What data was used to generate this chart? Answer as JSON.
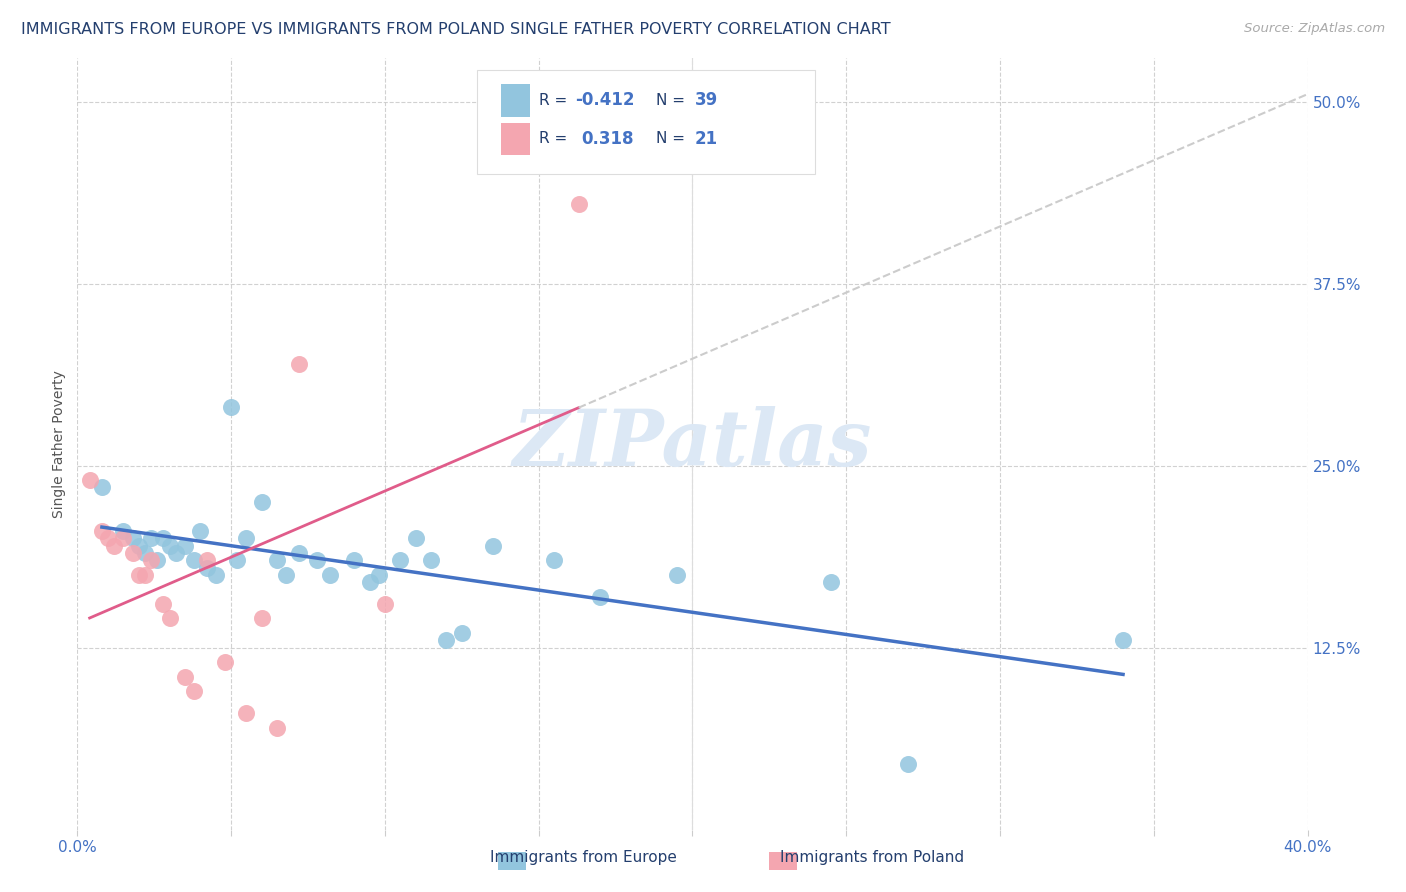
{
  "title": "IMMIGRANTS FROM EUROPE VS IMMIGRANTS FROM POLAND SINGLE FATHER POVERTY CORRELATION CHART",
  "source": "Source: ZipAtlas.com",
  "ylabel": "Single Father Poverty",
  "ytick_labels": [
    "50.0%",
    "37.5%",
    "25.0%",
    "12.5%"
  ],
  "ytick_values": [
    0.5,
    0.375,
    0.25,
    0.125
  ],
  "xlim": [
    0.0,
    0.4
  ],
  "ylim": [
    0.0,
    0.53
  ],
  "r_europe": -0.412,
  "r_poland": 0.318,
  "n_europe": 39,
  "n_poland": 21,
  "blue_color": "#92c5de",
  "pink_color": "#f4a6b0",
  "blue_line_color": "#4472c4",
  "pink_line_color": "#e05c8a",
  "pink_dash_color": "#cccccc",
  "watermark_color": "#dce8f5",
  "title_color": "#243f6e",
  "axis_label_color": "#4472c4",
  "legend_number_color": "#4472c4",
  "blue_scatter": [
    [
      0.008,
      0.235
    ],
    [
      0.015,
      0.205
    ],
    [
      0.018,
      0.2
    ],
    [
      0.02,
      0.195
    ],
    [
      0.022,
      0.19
    ],
    [
      0.024,
      0.2
    ],
    [
      0.026,
      0.185
    ],
    [
      0.028,
      0.2
    ],
    [
      0.03,
      0.195
    ],
    [
      0.032,
      0.19
    ],
    [
      0.035,
      0.195
    ],
    [
      0.038,
      0.185
    ],
    [
      0.04,
      0.205
    ],
    [
      0.042,
      0.18
    ],
    [
      0.045,
      0.175
    ],
    [
      0.05,
      0.29
    ],
    [
      0.052,
      0.185
    ],
    [
      0.055,
      0.2
    ],
    [
      0.06,
      0.225
    ],
    [
      0.065,
      0.185
    ],
    [
      0.068,
      0.175
    ],
    [
      0.072,
      0.19
    ],
    [
      0.078,
      0.185
    ],
    [
      0.082,
      0.175
    ],
    [
      0.09,
      0.185
    ],
    [
      0.095,
      0.17
    ],
    [
      0.098,
      0.175
    ],
    [
      0.105,
      0.185
    ],
    [
      0.11,
      0.2
    ],
    [
      0.115,
      0.185
    ],
    [
      0.12,
      0.13
    ],
    [
      0.125,
      0.135
    ],
    [
      0.135,
      0.195
    ],
    [
      0.155,
      0.185
    ],
    [
      0.17,
      0.16
    ],
    [
      0.195,
      0.175
    ],
    [
      0.245,
      0.17
    ],
    [
      0.27,
      0.045
    ],
    [
      0.34,
      0.13
    ]
  ],
  "pink_scatter": [
    [
      0.004,
      0.24
    ],
    [
      0.008,
      0.205
    ],
    [
      0.01,
      0.2
    ],
    [
      0.012,
      0.195
    ],
    [
      0.015,
      0.2
    ],
    [
      0.018,
      0.19
    ],
    [
      0.02,
      0.175
    ],
    [
      0.022,
      0.175
    ],
    [
      0.024,
      0.185
    ],
    [
      0.028,
      0.155
    ],
    [
      0.03,
      0.145
    ],
    [
      0.035,
      0.105
    ],
    [
      0.038,
      0.095
    ],
    [
      0.042,
      0.185
    ],
    [
      0.048,
      0.115
    ],
    [
      0.055,
      0.08
    ],
    [
      0.06,
      0.145
    ],
    [
      0.065,
      0.07
    ],
    [
      0.072,
      0.32
    ],
    [
      0.1,
      0.155
    ],
    [
      0.163,
      0.43
    ]
  ]
}
